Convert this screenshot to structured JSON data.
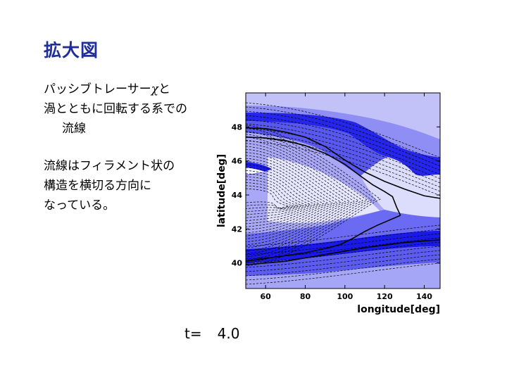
{
  "slide": {
    "title": "拡大図",
    "block1": {
      "line1": "パッシブトレーサー",
      "chi": "χ",
      "line1_end": "と",
      "line2": "渦とともに回転する系での",
      "line3": "流線"
    },
    "block2": {
      "line1": "流線はフィラメント状の",
      "line2": "構造を横切る方向に",
      "line3": "なっている。"
    },
    "time_label": "t=",
    "time_value": "4.0"
  },
  "chart_data": {
    "type": "contour",
    "xlabel": "longitude[deg]",
    "ylabel": "latitude[deg]",
    "xlim": [
      50,
      148
    ],
    "ylim": [
      38.5,
      50
    ],
    "xticks": [
      60,
      80,
      100,
      120,
      140
    ],
    "yticks": [
      40,
      42,
      44,
      46,
      48
    ],
    "tick_labels_x": [
      "60",
      "80",
      "100",
      "120",
      "140"
    ],
    "tick_labels_y": [
      "40",
      "42",
      "44",
      "46",
      "48"
    ],
    "fill_colors": [
      "#1a1ae8",
      "#3a3af0",
      "#6a6af2",
      "#9a9af6",
      "#c8c8fa",
      "#ebebfe"
    ],
    "bold_streamlines": [
      {
        "x": [
          50,
          60,
          70,
          80,
          90,
          100,
          108,
          114,
          120,
          124,
          126,
          128
        ],
        "y": [
          47.4,
          47.35,
          47.2,
          46.9,
          46.45,
          45.8,
          45.1,
          44.6,
          44.2,
          43.9,
          43.3,
          42.8
        ]
      },
      {
        "x": [
          128,
          122,
          116,
          110,
          104,
          98,
          92,
          86,
          80,
          74,
          68,
          62,
          56,
          50
        ],
        "y": [
          42.8,
          42.5,
          42.2,
          41.85,
          41.45,
          41.1,
          40.9,
          40.75,
          40.6,
          40.5,
          40.4,
          40.3,
          40.2,
          40.1
        ]
      },
      {
        "x": [
          50,
          60,
          70,
          80,
          90,
          100,
          110,
          120,
          130,
          140,
          148
        ],
        "y": [
          47.95,
          47.9,
          47.7,
          47.4,
          46.85,
          46.05,
          45.35,
          44.8,
          44.35,
          43.95,
          43.8
        ]
      },
      {
        "x": [
          50,
          60,
          70,
          80,
          90,
          100,
          110,
          120,
          130,
          140,
          148
        ],
        "y": [
          39.9,
          40.0,
          40.1,
          40.3,
          40.5,
          40.7,
          40.9,
          41.05,
          41.2,
          41.3,
          41.35
        ]
      }
    ]
  }
}
